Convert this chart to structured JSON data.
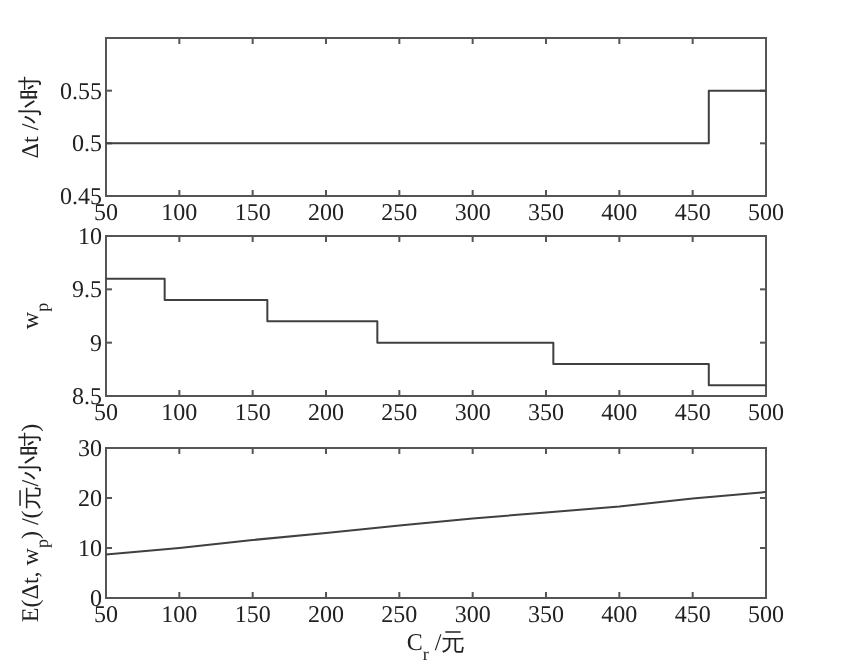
{
  "chart_data": [
    {
      "type": "step",
      "ylabel": "Δt /小时",
      "x": [
        50,
        461,
        500
      ],
      "values": [
        0.5,
        0.55,
        0.55
      ],
      "color": "#404040",
      "xlim": [
        50,
        500
      ],
      "xticks": [
        50,
        100,
        150,
        200,
        250,
        300,
        350,
        400,
        450,
        500
      ],
      "ylim": [
        0.45,
        0.6
      ],
      "yticks": [
        0.45,
        0.5,
        0.55
      ]
    },
    {
      "type": "step",
      "ylabel": "w$_{p}$",
      "x": [
        50,
        90,
        160,
        235,
        355,
        461,
        500
      ],
      "values": [
        9.6,
        9.4,
        9.2,
        9.0,
        8.8,
        8.6,
        8.6
      ],
      "color": "#404040",
      "xlim": [
        50,
        500
      ],
      "xticks": [
        50,
        100,
        150,
        200,
        250,
        300,
        350,
        400,
        450,
        500
      ],
      "ylim": [
        8.5,
        10
      ],
      "yticks": [
        8.5,
        9,
        9.5,
        10
      ]
    },
    {
      "type": "line",
      "ylabel": "E(Δt, w$_{p}$) /(元/小时)",
      "xlabel": "C$_{r}$ /元",
      "x": [
        50,
        100,
        150,
        200,
        250,
        300,
        350,
        400,
        450,
        500
      ],
      "values": [
        8.7,
        10,
        11.6,
        13,
        14.5,
        15.9,
        17.1,
        18.3,
        19.9,
        21.2
      ],
      "color": "#404040",
      "xlim": [
        50,
        500
      ],
      "xticks": [
        50,
        100,
        150,
        200,
        250,
        300,
        350,
        400,
        450,
        500
      ],
      "ylim": [
        0,
        30
      ],
      "yticks": [
        0,
        10,
        20,
        30
      ]
    }
  ]
}
